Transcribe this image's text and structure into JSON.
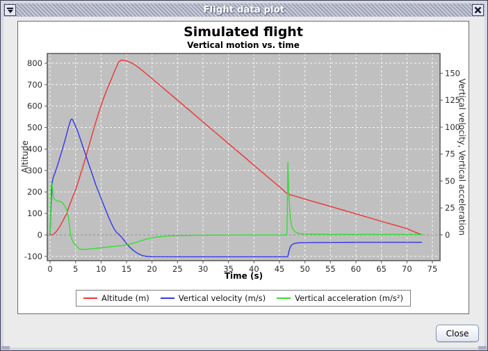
{
  "window": {
    "title": "Flight data plot",
    "close_button_label": "Close"
  },
  "ui_colors": {
    "plot_background": "#c0c0c0",
    "grid_line": "#f8f8f8",
    "zero_line": "#8f8f8f",
    "axis_frame": "#565656",
    "titlebar_stripe_light": "#c9ccd9",
    "titlebar_stripe_dark": "#9da1b6"
  },
  "chart_data": {
    "type": "line",
    "title": "Simulated flight",
    "subtitle": "Vertical motion vs. time",
    "xlabel": "Time (s)",
    "ylabel_left": "Altitude",
    "ylabel_right": "Vertical velocity, Vertical acceleration",
    "grid": true,
    "legend_position": "bottom",
    "x_ticks": [
      0,
      5,
      10,
      15,
      20,
      25,
      30,
      35,
      40,
      45,
      50,
      55,
      60,
      65,
      70,
      75
    ],
    "y_ticks_left": [
      -100,
      0,
      100,
      200,
      300,
      400,
      500,
      600,
      700,
      800
    ],
    "y_ticks_right": [
      0,
      25,
      50,
      75,
      100,
      125,
      150
    ],
    "x_range": [
      -0.55,
      76.5
    ],
    "y_range_left": [
      -120,
      845
    ],
    "y_range_right": [
      -23.9,
      168.3
    ],
    "right_to_left_scale": 5.02,
    "series": [
      {
        "name": "Altitude (m)",
        "color": "#ee3333",
        "axis": "left",
        "points": [
          [
            0,
            0
          ],
          [
            0.5,
            0
          ],
          [
            1,
            10
          ],
          [
            1.5,
            24
          ],
          [
            2,
            43
          ],
          [
            2.5,
            65
          ],
          [
            3,
            88
          ],
          [
            3.3,
            100
          ],
          [
            3.5,
            118
          ],
          [
            4,
            150
          ],
          [
            4.5,
            180
          ],
          [
            5,
            210
          ],
          [
            5.5,
            246
          ],
          [
            6,
            284
          ],
          [
            6.5,
            322
          ],
          [
            7,
            362
          ],
          [
            7.5,
            404
          ],
          [
            8,
            446
          ],
          [
            8.5,
            488
          ],
          [
            9,
            528
          ],
          [
            9.5,
            566
          ],
          [
            10,
            602
          ],
          [
            10.5,
            636
          ],
          [
            11,
            668
          ],
          [
            11.5,
            697
          ],
          [
            12,
            724
          ],
          [
            12.5,
            754
          ],
          [
            13,
            782
          ],
          [
            13.5,
            806
          ],
          [
            14,
            815
          ],
          [
            15,
            811
          ],
          [
            16,
            801
          ],
          [
            17,
            786
          ],
          [
            18,
            768
          ],
          [
            19,
            748
          ],
          [
            20,
            728
          ],
          [
            22,
            688
          ],
          [
            25,
            627
          ],
          [
            28,
            567
          ],
          [
            30,
            526
          ],
          [
            32,
            486
          ],
          [
            35,
            425
          ],
          [
            38,
            365
          ],
          [
            40,
            324
          ],
          [
            42,
            284
          ],
          [
            44,
            244
          ],
          [
            45,
            224
          ],
          [
            46,
            203
          ],
          [
            46.6,
            191
          ],
          [
            47,
            188
          ],
          [
            47.5,
            184
          ],
          [
            48,
            181
          ],
          [
            49,
            174
          ],
          [
            50,
            167
          ],
          [
            52,
            153
          ],
          [
            55,
            133
          ],
          [
            58,
            112
          ],
          [
            60,
            98
          ],
          [
            62,
            84
          ],
          [
            65,
            63
          ],
          [
            68,
            43
          ],
          [
            70,
            29
          ],
          [
            72,
            9
          ],
          [
            73,
            0
          ]
        ]
      },
      {
        "name": "Vertical velocity (m/s)",
        "color": "#3333ee",
        "axis": "right",
        "points": [
          [
            0,
            0
          ],
          [
            0.1,
            14
          ],
          [
            0.2,
            28
          ],
          [
            0.35,
            44
          ],
          [
            0.5,
            51
          ],
          [
            0.75,
            55
          ],
          [
            1,
            58
          ],
          [
            1.5,
            65
          ],
          [
            2,
            73
          ],
          [
            2.5,
            81
          ],
          [
            3,
            89
          ],
          [
            3.5,
            98
          ],
          [
            3.8,
            103
          ],
          [
            4,
            106
          ],
          [
            4.2,
            107.5
          ],
          [
            4.4,
            107
          ],
          [
            4.7,
            104
          ],
          [
            5,
            101
          ],
          [
            5.5,
            95
          ],
          [
            6,
            88
          ],
          [
            6.5,
            81
          ],
          [
            7,
            74
          ],
          [
            7.5,
            67
          ],
          [
            8,
            60
          ],
          [
            8.5,
            53
          ],
          [
            9,
            46
          ],
          [
            9.5,
            40
          ],
          [
            10,
            34
          ],
          [
            10.5,
            28
          ],
          [
            11,
            22
          ],
          [
            11.5,
            16
          ],
          [
            12,
            11
          ],
          [
            12.5,
            6
          ],
          [
            13,
            2.5
          ],
          [
            13.5,
            0.5
          ],
          [
            14,
            -2
          ],
          [
            14.5,
            -5
          ],
          [
            15,
            -8
          ],
          [
            15.5,
            -10.8
          ],
          [
            16,
            -13
          ],
          [
            16.5,
            -15
          ],
          [
            17,
            -16.6
          ],
          [
            17.5,
            -18
          ],
          [
            18,
            -19
          ],
          [
            18.5,
            -19.6
          ],
          [
            19,
            -20
          ],
          [
            20,
            -20.2
          ],
          [
            25,
            -20.3
          ],
          [
            30,
            -20.3
          ],
          [
            35,
            -20.3
          ],
          [
            40,
            -20.3
          ],
          [
            45,
            -20.3
          ],
          [
            46.6,
            -20.3
          ],
          [
            46.75,
            -18
          ],
          [
            46.9,
            -14.5
          ],
          [
            47.1,
            -11.5
          ],
          [
            47.4,
            -9.3
          ],
          [
            47.8,
            -8.2
          ],
          [
            48.3,
            -7.6
          ],
          [
            49,
            -7.3
          ],
          [
            50,
            -7.2
          ],
          [
            52,
            -7.1
          ],
          [
            55,
            -7
          ],
          [
            60,
            -6.9
          ],
          [
            65,
            -6.9
          ],
          [
            70,
            -6.9
          ],
          [
            73,
            -6.9
          ]
        ]
      },
      {
        "name": "Vertical acceleration (m/s²)",
        "color": "#33dd33",
        "axis": "right",
        "points": [
          [
            0,
            0
          ],
          [
            0.1,
            20
          ],
          [
            0.2,
            44
          ],
          [
            0.3,
            50
          ],
          [
            0.4,
            46
          ],
          [
            0.55,
            38
          ],
          [
            0.7,
            34
          ],
          [
            1,
            32.5
          ],
          [
            1.5,
            31.5
          ],
          [
            2,
            31
          ],
          [
            2.5,
            29.5
          ],
          [
            3,
            26
          ],
          [
            3.3,
            22.5
          ],
          [
            3.6,
            16.5
          ],
          [
            3.8,
            9
          ],
          [
            4,
            1
          ],
          [
            4.2,
            -3
          ],
          [
            4.5,
            -6.5
          ],
          [
            5,
            -9.5
          ],
          [
            5.5,
            -12
          ],
          [
            6,
            -13.4
          ],
          [
            6.5,
            -13.6
          ],
          [
            7,
            -13.4
          ],
          [
            8,
            -13
          ],
          [
            9,
            -12.5
          ],
          [
            10,
            -12
          ],
          [
            11,
            -11.4
          ],
          [
            12,
            -10.9
          ],
          [
            13,
            -10.4
          ],
          [
            14,
            -10
          ],
          [
            15,
            -9.3
          ],
          [
            16,
            -8.2
          ],
          [
            17,
            -6.8
          ],
          [
            18,
            -5.2
          ],
          [
            19,
            -3.8
          ],
          [
            20,
            -2.8
          ],
          [
            21,
            -2
          ],
          [
            22,
            -1.5
          ],
          [
            23,
            -1.1
          ],
          [
            25,
            -0.7
          ],
          [
            28,
            -0.4
          ],
          [
            32,
            -0.25
          ],
          [
            36,
            -0.15
          ],
          [
            40,
            -0.1
          ],
          [
            44,
            -0.1
          ],
          [
            46.45,
            -0.1
          ],
          [
            46.55,
            25
          ],
          [
            46.65,
            67.5
          ],
          [
            46.8,
            44
          ],
          [
            47,
            24
          ],
          [
            47.2,
            13
          ],
          [
            47.5,
            6.5
          ],
          [
            48,
            3
          ],
          [
            48.5,
            1.7
          ],
          [
            49,
            1.1
          ],
          [
            50,
            0.8
          ],
          [
            52,
            0.6
          ],
          [
            55,
            0.5
          ],
          [
            60,
            0.4
          ],
          [
            65,
            0.4
          ],
          [
            70,
            0.4
          ],
          [
            73,
            0.4
          ]
        ]
      }
    ]
  }
}
